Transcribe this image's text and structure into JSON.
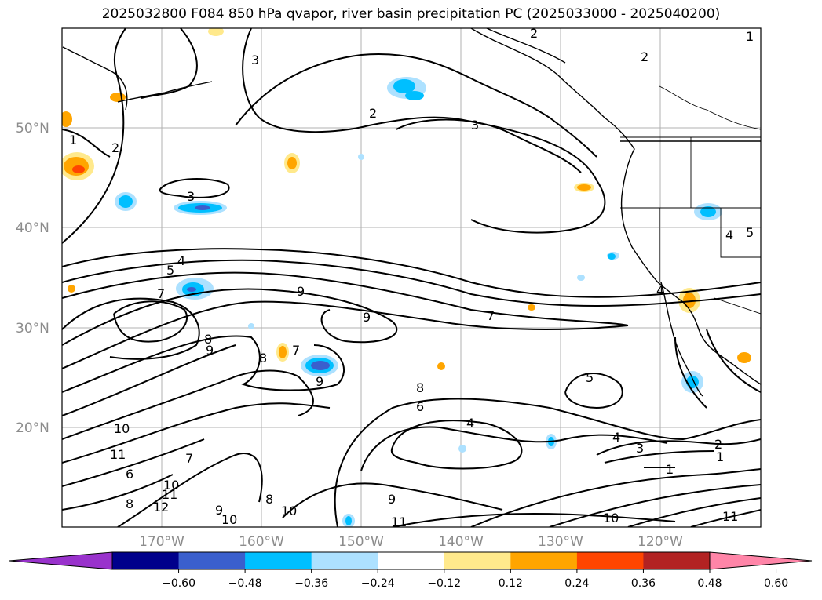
{
  "title": "2025032800 F084 850 hPa qvapor, river basin precipitation PC (2025033000 - 2025040200)",
  "map": {
    "lat_labels": [
      "50°N",
      "40°N",
      "30°N",
      "20°N"
    ],
    "lon_labels": [
      "170°W",
      "160°W",
      "150°W",
      "140°W",
      "130°W",
      "120°W"
    ],
    "contour_labels": [
      "1",
      "2",
      "3",
      "4",
      "5",
      "6",
      "7",
      "8",
      "9",
      "10",
      "11",
      "12"
    ]
  },
  "colorbar": {
    "ticks": [
      "−0.60",
      "−0.48",
      "−0.36",
      "−0.24",
      "−0.12",
      "0.12",
      "0.24",
      "0.36",
      "0.48",
      "0.60"
    ],
    "colors": [
      "#9932CC",
      "#00008B",
      "#3A5FCD",
      "#00BFFF",
      "#ADE1FF",
      "#FFFFFF",
      "#FFE98C",
      "#FFA500",
      "#FF4500",
      "#B22222",
      "#FF85A8"
    ]
  }
}
